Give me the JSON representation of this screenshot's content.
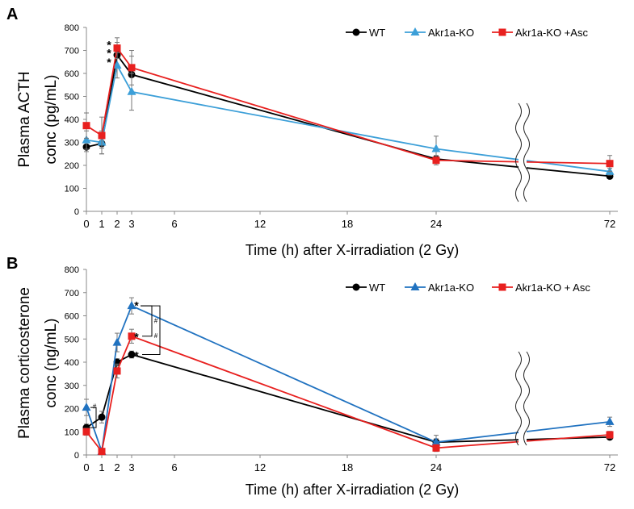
{
  "chart_data": [
    {
      "type": "line",
      "panel_label": "A",
      "ylabel_line1": "Plasma ACTH",
      "ylabel_line2": "conc (pg/mL)",
      "xlabel": "Time (h) after X-irradiation (2 Gy)",
      "x_tick_labels": [
        "0",
        "1",
        "2",
        "3",
        "6",
        "12",
        "18",
        "24",
        "72"
      ],
      "y_tick_labels": [
        "0",
        "100",
        "200",
        "300",
        "400",
        "500",
        "600",
        "700",
        "800"
      ],
      "ylim": [
        0,
        800
      ],
      "legend_position": "top-right",
      "series": [
        {
          "name": "WT",
          "color": "#000000",
          "marker": "circle",
          "x": [
            "0",
            "1",
            "2",
            "3",
            "24",
            "72"
          ],
          "values": [
            280,
            295,
            680,
            595,
            228,
            153
          ],
          "errors": [
            20,
            20,
            55,
            80,
            15,
            10
          ]
        },
        {
          "name": "Akr1a-KO",
          "color": "#3c9fd8",
          "marker": "triangle",
          "x": [
            "0",
            "1",
            "2",
            "3",
            "24",
            "72"
          ],
          "values": [
            310,
            300,
            635,
            520,
            272,
            173
          ],
          "errors": [
            40,
            50,
            55,
            80,
            55,
            15
          ]
        },
        {
          "name": "Akr1a-KO +Asc",
          "color": "#e8201f",
          "marker": "square",
          "x": [
            "0",
            "1",
            "2",
            "3",
            "24",
            "72"
          ],
          "values": [
            373,
            330,
            710,
            625,
            222,
            208
          ],
          "errors": [
            55,
            80,
            45,
            75,
            20,
            35
          ]
        }
      ],
      "annotations": [
        {
          "text": "*",
          "x": "2",
          "y": 735
        },
        {
          "text": "*",
          "x": "2",
          "y": 700
        },
        {
          "text": "*",
          "x": "2",
          "y": 660
        }
      ]
    },
    {
      "type": "line",
      "panel_label": "B",
      "ylabel_line1": "Plasma corticosterone",
      "ylabel_line2": "conc (ng/mL)",
      "xlabel": "Time (h) after X-irradiation (2 Gy)",
      "x_tick_labels": [
        "0",
        "1",
        "2",
        "3",
        "6",
        "12",
        "18",
        "24",
        "72"
      ],
      "y_tick_labels": [
        "0",
        "100",
        "200",
        "300",
        "400",
        "500",
        "600",
        "700",
        "800"
      ],
      "ylim": [
        0,
        800
      ],
      "legend_position": "top-right",
      "series": [
        {
          "name": "WT",
          "color": "#000000",
          "marker": "circle",
          "x": [
            "0",
            "1",
            "2",
            "3",
            "24",
            "72"
          ],
          "values": [
            118,
            163,
            400,
            433,
            55,
            77
          ],
          "errors": [
            15,
            25,
            15,
            15,
            15,
            10
          ]
        },
        {
          "name": "Akr1a-KO",
          "color": "#2072c0",
          "marker": "triangle",
          "x": [
            "0",
            "1",
            "2",
            "3",
            "24",
            "72"
          ],
          "values": [
            205,
            15,
            485,
            643,
            55,
            143
          ],
          "errors": [
            35,
            10,
            40,
            35,
            30,
            20
          ]
        },
        {
          "name": "Akr1a-KO + Asc",
          "color": "#e8201f",
          "marker": "square",
          "x": [
            "0",
            "1",
            "2",
            "3",
            "24",
            "72"
          ],
          "values": [
            100,
            15,
            362,
            512,
            30,
            87
          ],
          "errors": [
            15,
            10,
            30,
            30,
            15,
            15
          ]
        }
      ],
      "annotations": [
        {
          "text": "*",
          "x": "3",
          "y": 655
        },
        {
          "text": "*",
          "x": "3",
          "y": 520
        },
        {
          "text": "*",
          "x": "3",
          "y": 440
        },
        {
          "text": "#",
          "x": "0.5",
          "y": 210
        },
        {
          "text": "#",
          "x": "3.5",
          "y": 580
        },
        {
          "text": "#",
          "x": "3.5",
          "y": 515
        }
      ]
    }
  ]
}
